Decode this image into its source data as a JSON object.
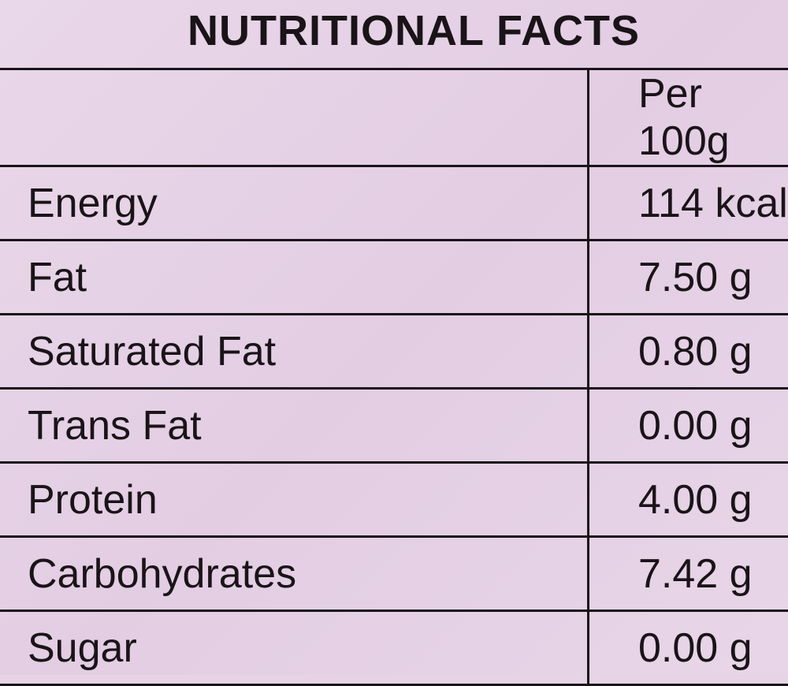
{
  "header": {
    "title": "NUTRITIONAL FACTS"
  },
  "table": {
    "columns": [
      "",
      "Per 100g"
    ],
    "rows": [
      [
        "Energy",
        "114 kcal"
      ],
      [
        "Fat",
        "7.50 g"
      ],
      [
        "Saturated Fat",
        "0.80 g"
      ],
      [
        "Trans Fat",
        "0.00 g"
      ],
      [
        "Protein",
        "4.00 g"
      ],
      [
        "Carbohydrates",
        "7.42 g"
      ],
      [
        "Sugar",
        "0.00 g"
      ]
    ]
  }
}
